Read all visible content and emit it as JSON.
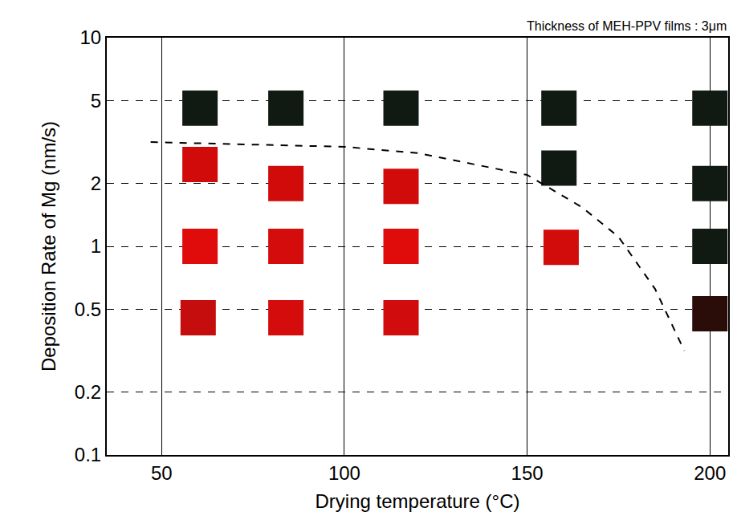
{
  "chart_data": {
    "type": "scatter",
    "annotation": "Thickness of MEH-PPV films : 3μm",
    "x_label": "Drying temperature (°C)",
    "y_label": "Deposition Rate of Mg (nm/s)",
    "log": "y",
    "grid": true,
    "xlim": [
      35,
      205
    ],
    "xticks": [
      50,
      100,
      150,
      200
    ],
    "ylim": [
      0.1,
      10
    ],
    "yticks": [
      0.1,
      0.2,
      0.5,
      1,
      2,
      5,
      10
    ],
    "series": [
      {
        "type": "scatter",
        "marker": "square",
        "x": [
          60.5,
          84,
          115.5,
          158.7,
          200,
          60.5,
          84,
          115.5,
          158.7,
          200,
          60.5,
          84,
          115.5,
          159.3,
          200,
          60,
          84,
          115.5,
          200
        ],
        "values": [
          4.6,
          4.6,
          4.6,
          4.6,
          4.6,
          2.47,
          2.0,
          1.94,
          2.37,
          2.0,
          1.0,
          1.0,
          1.0,
          0.99,
          1.0,
          0.455,
          0.455,
          0.455,
          0.475
        ],
        "colors": [
          "#111a12",
          "#111a12",
          "#111a12",
          "#111a12",
          "#111a12",
          "#d10a0a",
          "#d10a0a",
          "#d10a0a",
          "#111a12",
          "#111a12",
          "#e00b0b",
          "#d40c0c",
          "#e00b0b",
          "#d20b0b",
          "#111a12",
          "#c50d0d",
          "#d40c0c",
          "#d00c0c",
          "#2a0c08"
        ]
      },
      {
        "type": "line",
        "line_style": "dashed",
        "color": "#000000",
        "x": [
          47,
          100,
          120,
          150,
          165,
          175,
          185,
          193
        ],
        "values": [
          3.16,
          3.0,
          2.8,
          2.2,
          1.54,
          1.11,
          0.625,
          0.316
        ]
      }
    ]
  }
}
